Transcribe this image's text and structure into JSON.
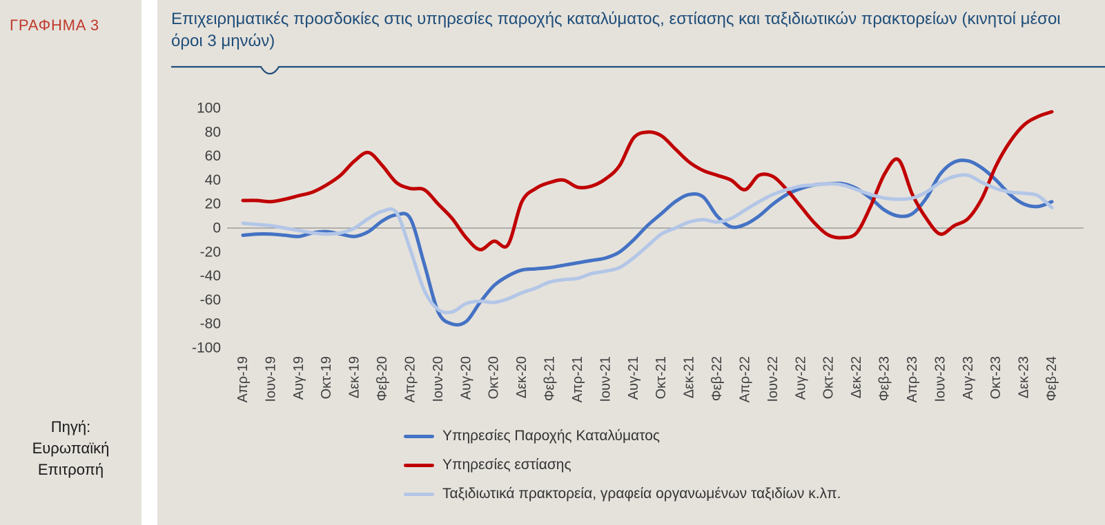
{
  "theme": {
    "background": "#e5e2dc",
    "title_blue": "#1f4e79",
    "figure_red": "#c0392b",
    "axis_text": "#3f3f3f",
    "zero_line": "#8e8e8e"
  },
  "sidebar": {
    "chart_label": "ΓΡΑΦΗΜΑ 3",
    "source_lines": [
      "Πηγή:",
      "Ευρωπαϊκή",
      "Επιτροπή"
    ]
  },
  "header": {
    "title": "Επιχειρηματικές προσδοκίες στις υπηρεσίες παροχής καταλύματος, εστίασης και ταξιδιωτικών πρακτορείων (κινητοί μέσοι όροι 3 μηνών)"
  },
  "chart_data": {
    "type": "line",
    "title": "Επιχειρηματικές προσδοκίες στις υπηρεσίες παροχής καταλύματος, εστίασης και ταξιδιωτικών πρακτορείων (κινητοί μέσοι όροι 3 μηνών)",
    "ylim": [
      -100,
      100
    ],
    "yticks": [
      100,
      80,
      60,
      40,
      20,
      0,
      -20,
      -40,
      -60,
      -80,
      -100
    ],
    "grid": false,
    "zero_line": true,
    "legend_position": "bottom-center",
    "points_per_label": 2,
    "x_tick_labels": [
      "Απρ-19",
      "Ιουν-19",
      "Αυγ-19",
      "Οκτ-19",
      "Δεκ-19",
      "Φεβ-20",
      "Απρ-20",
      "Ιουν-20",
      "Αυγ-20",
      "Οκτ-20",
      "Δεκ-20",
      "Φεβ-21",
      "Απρ-21",
      "Ιουν-21",
      "Αυγ-21",
      "Οκτ-21",
      "Δεκ-21",
      "Φεβ-22",
      "Απρ-22",
      "Ιουν-22",
      "Αυγ-22",
      "Οκτ-22",
      "Δεκ-22",
      "Φεβ-23",
      "Απρ-23",
      "Ιουν-23",
      "Αυγ-23",
      "Οκτ-23",
      "Δεκ-23",
      "Φεβ-24"
    ],
    "series": [
      {
        "name": "Υπηρεσίες Παροχής Καταλύματος",
        "color": "#4472c4",
        "values": [
          -6,
          -5,
          -5,
          -6,
          -7,
          -4,
          -3,
          -5,
          -7,
          -3,
          6,
          11,
          8,
          -30,
          -70,
          -80,
          -78,
          -62,
          -48,
          -40,
          -35,
          -34,
          -33,
          -31,
          -29,
          -27,
          -25,
          -20,
          -10,
          2,
          12,
          22,
          28,
          26,
          10,
          1,
          3,
          10,
          20,
          28,
          33,
          36,
          37,
          37,
          33,
          25,
          15,
          10,
          12,
          25,
          45,
          55,
          56,
          50,
          40,
          28,
          20,
          18,
          22
        ]
      },
      {
        "name": "Υπηρεσίες εστίασης",
        "color": "#c00000",
        "values": [
          23,
          23,
          22,
          24,
          27,
          30,
          36,
          44,
          56,
          63,
          52,
          38,
          33,
          32,
          20,
          8,
          -8,
          -18,
          -11,
          -14,
          22,
          33,
          38,
          40,
          34,
          35,
          41,
          52,
          75,
          80,
          77,
          66,
          55,
          48,
          44,
          40,
          32,
          44,
          43,
          32,
          18,
          4,
          -6,
          -8,
          -4,
          18,
          45,
          57,
          28,
          8,
          -5,
          2,
          8,
          25,
          52,
          72,
          86,
          93,
          97
        ]
      },
      {
        "name": "Ταξιδιωτικά πρακτορεία, γραφεία οργανωμένων ταξιδίων κ.λπ.",
        "color": "#b3c6e7",
        "values": [
          4,
          3,
          2,
          0,
          -2,
          -4,
          -5,
          -4,
          0,
          8,
          14,
          13,
          -18,
          -52,
          -68,
          -70,
          -63,
          -61,
          -62,
          -59,
          -54,
          -50,
          -45,
          -43,
          -42,
          -38,
          -36,
          -33,
          -25,
          -15,
          -5,
          0,
          5,
          7,
          5,
          8,
          15,
          22,
          28,
          32,
          35,
          36,
          37,
          36,
          32,
          28,
          25,
          24,
          25,
          30,
          38,
          43,
          44,
          38,
          33,
          30,
          29,
          27,
          17
        ]
      }
    ]
  }
}
